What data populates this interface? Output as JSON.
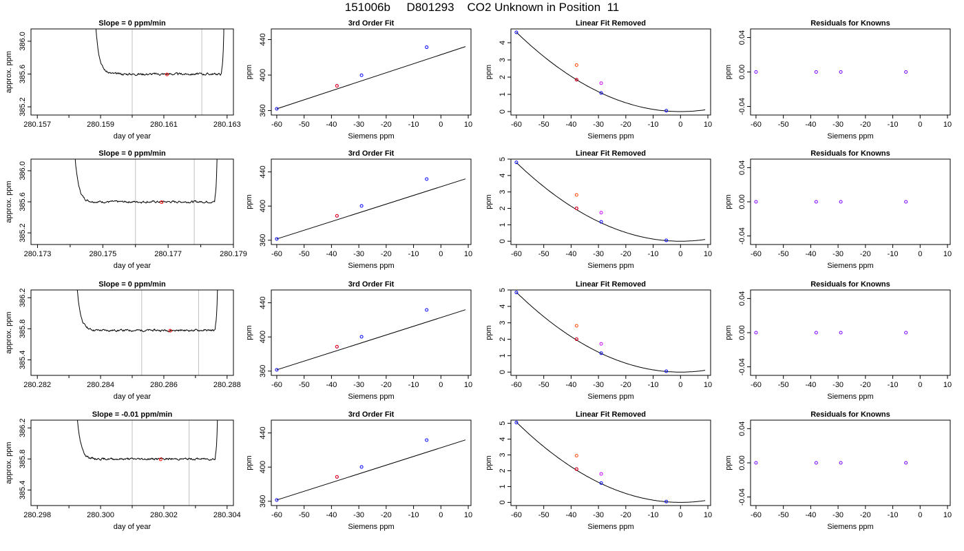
{
  "figure": {
    "title": "151006b     D801293    CO2 Unknown in Position  11"
  },
  "chart_data": [
    {
      "type": "line",
      "row": 0,
      "col": 0,
      "title": "Slope =  0  ppm/min",
      "xlabel": "day of year",
      "ylabel": "approx. ppm",
      "xlim": [
        280.1568,
        280.1632
      ],
      "ylim": [
        385.1,
        386.15
      ],
      "xticks": [
        280.157,
        280.159,
        280.161,
        280.163
      ],
      "yticks": [
        385.2,
        385.6,
        386.0
      ],
      "plateau": 385.6,
      "t_rise": 280.1588,
      "t_fall": 280.1629,
      "vlines": [
        280.16,
        280.1622
      ],
      "point": {
        "x": 280.1611,
        "y": 385.595,
        "color": "#ff0000"
      },
      "seed": 3
    },
    {
      "type": "scatter",
      "row": 0,
      "col": 1,
      "title": "3rd Order Fit",
      "xlabel": "Siemens ppm",
      "ylabel": "ppm",
      "xlim": [
        -62,
        11
      ],
      "ylim": [
        355,
        452
      ],
      "xticks": [
        -60,
        -50,
        -40,
        -30,
        -20,
        -10,
        0,
        10
      ],
      "yticks": [
        360,
        400,
        440
      ],
      "fit": {
        "x0": -60,
        "y0": 362,
        "slope": 1.016,
        "range": [
          -60,
          9
        ]
      },
      "points": [
        {
          "x": -60,
          "y": 362,
          "color": "#0000ff"
        },
        {
          "x": -38,
          "y": 387.9,
          "color": "#0000ff"
        },
        {
          "x": -38,
          "y": 387.9,
          "color": "#ff0000"
        },
        {
          "x": -29,
          "y": 399.8,
          "color": "#0000ff"
        },
        {
          "x": -5.2,
          "y": 431.4,
          "color": "#0000ff"
        }
      ]
    },
    {
      "type": "scatter",
      "row": 0,
      "col": 2,
      "title": "Linear Fit Removed",
      "xlabel": "Siemens ppm",
      "ylabel": "ppm",
      "xlim": [
        -62,
        11
      ],
      "ylim": [
        -0.2,
        4.8
      ],
      "xticks": [
        -60,
        -50,
        -40,
        -30,
        -20,
        -10,
        0,
        10
      ],
      "yticks": [
        0,
        1,
        2,
        3,
        4
      ],
      "curve": {
        "a": 0.00128,
        "x0": 0,
        "range": [
          -60,
          9
        ]
      },
      "points": [
        {
          "x": -60,
          "y": 4.6,
          "color": "#0000ff"
        },
        {
          "x": -38,
          "y": 2.7,
          "color": "#ff4500"
        },
        {
          "x": -38,
          "y": 1.85,
          "color": "#0000ff"
        },
        {
          "x": -38,
          "y": 1.85,
          "color": "#ff0000"
        },
        {
          "x": -29,
          "y": 1.65,
          "color": "#cc00ff"
        },
        {
          "x": -29,
          "y": 1.08,
          "color": "#0000ff"
        },
        {
          "x": -5.2,
          "y": 0.05,
          "color": "#0000ff"
        }
      ]
    },
    {
      "type": "scatter",
      "row": 0,
      "col": 3,
      "title": "Residuals for Knowns",
      "xlabel": "Siemens ppm",
      "ylabel": "ppm",
      "xlim": [
        -62,
        11
      ],
      "ylim": [
        -0.05,
        0.05
      ],
      "xticks": [
        -60,
        -50,
        -40,
        -30,
        -20,
        -10,
        0,
        10
      ],
      "yticks": [
        -0.04,
        0.0,
        0.04
      ],
      "yticklabels": [
        "-0.04",
        "0.00",
        "0.04"
      ],
      "points": [
        {
          "x": -60,
          "y": 0,
          "color": "#7b00ff"
        },
        {
          "x": -38,
          "y": 0,
          "color": "#7b00ff"
        },
        {
          "x": -29,
          "y": 0,
          "color": "#7b00ff"
        },
        {
          "x": -5.2,
          "y": 0,
          "color": "#7b00ff"
        }
      ]
    },
    {
      "type": "line",
      "row": 1,
      "col": 0,
      "title": "Slope =  0  ppm/min",
      "xlabel": "day of year",
      "ylabel": "approx. ppm",
      "xlim": [
        280.1728,
        280.179
      ],
      "ylim": [
        385.05,
        386.15
      ],
      "xticks": [
        280.173,
        280.175,
        280.177,
        280.179
      ],
      "yticks": [
        385.2,
        385.6,
        386.0
      ],
      "plateau": 385.6,
      "t_rise": 280.1741,
      "t_fall": 280.1785,
      "vlines": [
        280.176,
        280.1778
      ],
      "point": {
        "x": 280.1768,
        "y": 385.595,
        "color": "#ff0000"
      },
      "seed": 7
    },
    {
      "type": "scatter",
      "row": 1,
      "col": 1,
      "title": "3rd Order Fit",
      "xlabel": "Siemens ppm",
      "ylabel": "ppm",
      "xlim": [
        -62,
        11
      ],
      "ylim": [
        355,
        455
      ],
      "xticks": [
        -60,
        -50,
        -40,
        -30,
        -20,
        -10,
        0,
        10
      ],
      "yticks": [
        360,
        400,
        440
      ],
      "fit": {
        "x0": -60,
        "y0": 361.5,
        "slope": 1.02,
        "range": [
          -60,
          9
        ]
      },
      "points": [
        {
          "x": -60,
          "y": 361.5,
          "color": "#0000ff"
        },
        {
          "x": -38,
          "y": 388.6,
          "color": "#0000ff"
        },
        {
          "x": -38,
          "y": 388.6,
          "color": "#ff0000"
        },
        {
          "x": -29,
          "y": 400.2,
          "color": "#0000ff"
        },
        {
          "x": -5.2,
          "y": 431.6,
          "color": "#0000ff"
        }
      ]
    },
    {
      "type": "scatter",
      "row": 1,
      "col": 2,
      "title": "Linear Fit Removed",
      "xlabel": "Siemens ppm",
      "ylabel": "ppm",
      "xlim": [
        -62,
        11
      ],
      "ylim": [
        -0.2,
        5.0
      ],
      "xticks": [
        -60,
        -50,
        -40,
        -30,
        -20,
        -10,
        0,
        10
      ],
      "yticks": [
        0,
        1,
        2,
        3,
        4,
        5
      ],
      "curve": {
        "a": 0.00133,
        "x0": 0,
        "range": [
          -60,
          9
        ]
      },
      "points": [
        {
          "x": -60,
          "y": 4.8,
          "color": "#0000ff"
        },
        {
          "x": -38,
          "y": 2.82,
          "color": "#ff4500"
        },
        {
          "x": -38,
          "y": 2.0,
          "color": "#0000ff"
        },
        {
          "x": -38,
          "y": 2.0,
          "color": "#ff0000"
        },
        {
          "x": -29,
          "y": 1.74,
          "color": "#cc00ff"
        },
        {
          "x": -29,
          "y": 1.18,
          "color": "#0000ff"
        },
        {
          "x": -5.2,
          "y": 0.05,
          "color": "#0000ff"
        }
      ]
    },
    {
      "type": "scatter",
      "row": 1,
      "col": 3,
      "title": "Residuals for Knowns",
      "xlabel": "Siemens ppm",
      "ylabel": "ppm",
      "xlim": [
        -62,
        11
      ],
      "ylim": [
        -0.05,
        0.05
      ],
      "xticks": [
        -60,
        -50,
        -40,
        -30,
        -20,
        -10,
        0,
        10
      ],
      "yticks": [
        -0.04,
        0.0,
        0.04
      ],
      "yticklabels": [
        "-0.04",
        "0.00",
        "0.04"
      ],
      "points": [
        {
          "x": -60,
          "y": 0,
          "color": "#7b00ff"
        },
        {
          "x": -38,
          "y": 0,
          "color": "#7b00ff"
        },
        {
          "x": -29,
          "y": 0,
          "color": "#7b00ff"
        },
        {
          "x": -5.2,
          "y": 0,
          "color": "#7b00ff"
        }
      ]
    },
    {
      "type": "line",
      "row": 2,
      "col": 0,
      "title": "Slope =  0  ppm/min",
      "xlabel": "day of year",
      "ylabel": "approx. ppm",
      "xlim": [
        280.2818,
        280.2882
      ],
      "ylim": [
        385.2,
        386.3
      ],
      "xticks": [
        280.282,
        280.284,
        280.286,
        280.288
      ],
      "yticks": [
        385.4,
        385.8,
        386.2
      ],
      "plateau": 385.78,
      "t_rise": 280.2832,
      "t_fall": 280.2877,
      "vlines": [
        280.2853,
        280.2871
      ],
      "point": {
        "x": 280.2862,
        "y": 385.775,
        "color": "#ff0000"
      },
      "seed": 11
    },
    {
      "type": "scatter",
      "row": 2,
      "col": 1,
      "title": "3rd Order Fit",
      "xlabel": "Siemens ppm",
      "ylabel": "ppm",
      "xlim": [
        -62,
        11
      ],
      "ylim": [
        355,
        455
      ],
      "xticks": [
        -60,
        -50,
        -40,
        -30,
        -20,
        -10,
        0,
        10
      ],
      "yticks": [
        360,
        400,
        440
      ],
      "fit": {
        "x0": -60,
        "y0": 361.5,
        "slope": 1.02,
        "range": [
          -60,
          9
        ]
      },
      "points": [
        {
          "x": -60,
          "y": 361.5,
          "color": "#0000ff"
        },
        {
          "x": -38,
          "y": 388.6,
          "color": "#0000ff"
        },
        {
          "x": -38,
          "y": 388.6,
          "color": "#ff0000"
        },
        {
          "x": -29,
          "y": 400.2,
          "color": "#0000ff"
        },
        {
          "x": -5.2,
          "y": 431.6,
          "color": "#0000ff"
        }
      ]
    },
    {
      "type": "scatter",
      "row": 2,
      "col": 2,
      "title": "Linear Fit Removed",
      "xlabel": "Siemens ppm",
      "ylabel": "ppm",
      "xlim": [
        -62,
        11
      ],
      "ylim": [
        -0.2,
        5.0
      ],
      "xticks": [
        -60,
        -50,
        -40,
        -30,
        -20,
        -10,
        0,
        10
      ],
      "yticks": [
        0,
        1,
        2,
        3,
        4,
        5
      ],
      "curve": {
        "a": 0.00135,
        "x0": 0,
        "range": [
          -60,
          9
        ]
      },
      "points": [
        {
          "x": -60,
          "y": 4.85,
          "color": "#0000ff"
        },
        {
          "x": -38,
          "y": 2.82,
          "color": "#ff4500"
        },
        {
          "x": -38,
          "y": 2.0,
          "color": "#0000ff"
        },
        {
          "x": -38,
          "y": 2.0,
          "color": "#ff0000"
        },
        {
          "x": -29,
          "y": 1.72,
          "color": "#cc00ff"
        },
        {
          "x": -29,
          "y": 1.15,
          "color": "#0000ff"
        },
        {
          "x": -5.2,
          "y": 0.05,
          "color": "#0000ff"
        }
      ]
    },
    {
      "type": "scatter",
      "row": 2,
      "col": 3,
      "title": "Residuals for Knowns",
      "xlabel": "Siemens ppm",
      "ylabel": "ppm",
      "xlim": [
        -62,
        11
      ],
      "ylim": [
        -0.05,
        0.05
      ],
      "xticks": [
        -60,
        -50,
        -40,
        -30,
        -20,
        -10,
        0,
        10
      ],
      "yticks": [
        -0.04,
        0.0,
        0.04
      ],
      "yticklabels": [
        "-0.04",
        "0.00",
        "0.04"
      ],
      "points": [
        {
          "x": -60,
          "y": 0,
          "color": "#7b00ff"
        },
        {
          "x": -38,
          "y": 0,
          "color": "#7b00ff"
        },
        {
          "x": -29,
          "y": 0,
          "color": "#7b00ff"
        },
        {
          "x": -5.2,
          "y": 0,
          "color": "#7b00ff"
        }
      ]
    },
    {
      "type": "line",
      "row": 3,
      "col": 0,
      "title": "Slope =  -0.01  ppm/min",
      "xlabel": "day of year",
      "ylabel": "approx. ppm",
      "xlim": [
        280.2978,
        280.3042
      ],
      "ylim": [
        385.2,
        386.3
      ],
      "xticks": [
        280.298,
        280.3,
        280.302,
        280.304
      ],
      "xticklabels": [
        "280.298",
        "280.300",
        "280.302",
        "280.304"
      ],
      "yticks": [
        385.4,
        385.8,
        386.2
      ],
      "plateau": 385.8,
      "t_rise": 280.2992,
      "t_fall": 280.3037,
      "vlines": [
        280.301,
        280.3028
      ],
      "point": {
        "x": 280.3019,
        "y": 385.795,
        "color": "#ff0000"
      },
      "seed": 19
    },
    {
      "type": "scatter",
      "row": 3,
      "col": 1,
      "title": "3rd Order Fit",
      "xlabel": "Siemens ppm",
      "ylabel": "ppm",
      "xlim": [
        -62,
        11
      ],
      "ylim": [
        355,
        455
      ],
      "xticks": [
        -60,
        -50,
        -40,
        -30,
        -20,
        -10,
        0,
        10
      ],
      "yticks": [
        360,
        400,
        440
      ],
      "fit": {
        "x0": -60,
        "y0": 361.5,
        "slope": 1.02,
        "range": [
          -60,
          9
        ]
      },
      "points": [
        {
          "x": -60,
          "y": 361.5,
          "color": "#0000ff"
        },
        {
          "x": -38,
          "y": 388.6,
          "color": "#0000ff"
        },
        {
          "x": -38,
          "y": 388.6,
          "color": "#ff0000"
        },
        {
          "x": -29,
          "y": 400.2,
          "color": "#0000ff"
        },
        {
          "x": -5.2,
          "y": 431.6,
          "color": "#0000ff"
        }
      ]
    },
    {
      "type": "scatter",
      "row": 3,
      "col": 2,
      "title": "Linear Fit Removed",
      "xlabel": "Siemens ppm",
      "ylabel": "ppm",
      "xlim": [
        -62,
        11
      ],
      "ylim": [
        -0.2,
        5.2
      ],
      "xticks": [
        -60,
        -50,
        -40,
        -30,
        -20,
        -10,
        0,
        10
      ],
      "yticks": [
        0,
        1,
        2,
        3,
        4,
        5
      ],
      "curve": {
        "a": 0.00141,
        "x0": 0,
        "range": [
          -60,
          9
        ]
      },
      "points": [
        {
          "x": -60,
          "y": 5.05,
          "color": "#0000ff"
        },
        {
          "x": -38,
          "y": 2.95,
          "color": "#ff4500"
        },
        {
          "x": -38,
          "y": 2.1,
          "color": "#0000ff"
        },
        {
          "x": -38,
          "y": 2.1,
          "color": "#ff0000"
        },
        {
          "x": -29,
          "y": 1.8,
          "color": "#cc00ff"
        },
        {
          "x": -29,
          "y": 1.22,
          "color": "#0000ff"
        },
        {
          "x": -5.2,
          "y": 0.05,
          "color": "#0000ff"
        }
      ]
    },
    {
      "type": "scatter",
      "row": 3,
      "col": 3,
      "title": "Residuals for Knowns",
      "xlabel": "Siemens ppm",
      "ylabel": "ppm",
      "xlim": [
        -62,
        11
      ],
      "ylim": [
        -0.05,
        0.05
      ],
      "xticks": [
        -60,
        -50,
        -40,
        -30,
        -20,
        -10,
        0,
        10
      ],
      "yticks": [
        -0.04,
        0.0,
        0.04
      ],
      "yticklabels": [
        "-0.04",
        "0.00",
        "0.04"
      ],
      "points": [
        {
          "x": -60,
          "y": 0,
          "color": "#7b00ff"
        },
        {
          "x": -38,
          "y": 0,
          "color": "#7b00ff"
        },
        {
          "x": -29,
          "y": 0,
          "color": "#7b00ff"
        },
        {
          "x": -5.2,
          "y": 0,
          "color": "#7b00ff"
        }
      ]
    }
  ]
}
